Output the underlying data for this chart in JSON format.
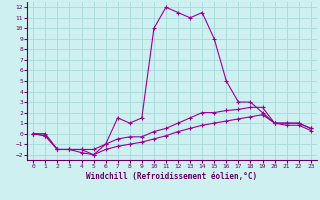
{
  "xlabel": "Windchill (Refroidissement éolien,°C)",
  "xlim": [
    -0.5,
    23.5
  ],
  "ylim": [
    -2.5,
    12.5
  ],
  "xticks": [
    0,
    1,
    2,
    3,
    4,
    5,
    6,
    7,
    8,
    9,
    10,
    11,
    12,
    13,
    14,
    15,
    16,
    17,
    18,
    19,
    20,
    21,
    22,
    23
  ],
  "yticks": [
    -2,
    -1,
    0,
    1,
    2,
    3,
    4,
    5,
    6,
    7,
    8,
    9,
    10,
    11,
    12
  ],
  "bg_color": "#cff0f0",
  "line_color": "#990099",
  "grid_color": "#aadddd",
  "line1_x": [
    0,
    1,
    2,
    3,
    4,
    5,
    6,
    7,
    8,
    9,
    10,
    11,
    12,
    13,
    14,
    15,
    16,
    17,
    18,
    19,
    20,
    21,
    22,
    23
  ],
  "line1_y": [
    0,
    0,
    -1.5,
    -1.5,
    -1.5,
    -2,
    -1,
    1.5,
    1.0,
    1.5,
    10,
    12,
    11.5,
    11,
    11.5,
    9,
    5,
    3,
    3,
    2,
    1,
    1,
    1,
    0.5
  ],
  "line2_x": [
    0,
    1,
    2,
    3,
    4,
    5,
    6,
    7,
    8,
    9,
    10,
    11,
    12,
    13,
    14,
    15,
    16,
    17,
    18,
    19,
    20,
    21,
    22,
    23
  ],
  "line2_y": [
    0,
    -0.2,
    -1.5,
    -1.5,
    -1.5,
    -1.5,
    -1.0,
    -0.5,
    -0.3,
    -0.3,
    0.2,
    0.5,
    1.0,
    1.5,
    2.0,
    2.0,
    2.2,
    2.3,
    2.5,
    2.5,
    1.0,
    1.0,
    1.0,
    0.5
  ],
  "line3_x": [
    0,
    1,
    2,
    3,
    4,
    5,
    6,
    7,
    8,
    9,
    10,
    11,
    12,
    13,
    14,
    15,
    16,
    17,
    18,
    19,
    20,
    21,
    22,
    23
  ],
  "line3_y": [
    0,
    -0.2,
    -1.5,
    -1.5,
    -1.8,
    -2.0,
    -1.5,
    -1.2,
    -1.0,
    -0.8,
    -0.5,
    -0.2,
    0.2,
    0.5,
    0.8,
    1.0,
    1.2,
    1.4,
    1.6,
    1.8,
    1.0,
    0.8,
    0.8,
    0.3
  ]
}
